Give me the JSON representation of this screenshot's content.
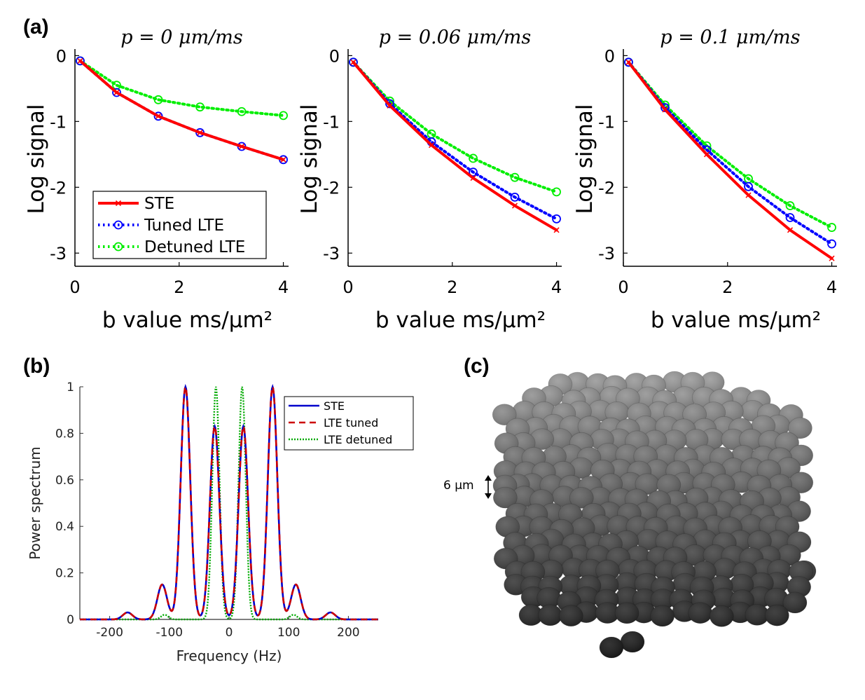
{
  "panels": {
    "a_label": "(a)",
    "b_label": "(b)",
    "c_label": "(c)"
  },
  "panel_c": {
    "scale_label": "6 µm"
  },
  "chart_data": [
    {
      "type": "line",
      "title": "p = 0  μm/ms",
      "xlabel": "b value ms/μm²",
      "ylabel": "Log signal",
      "xlim": [
        0,
        4.1
      ],
      "ylim": [
        -3.2,
        0.1
      ],
      "xticks": [
        "0",
        "2",
        "4"
      ],
      "yticks": [
        "0",
        "-1",
        "-2",
        "-3"
      ],
      "legend": [
        "STE",
        "Tuned LTE",
        "Detuned LTE"
      ],
      "x": [
        0.1,
        0.8,
        1.6,
        2.4,
        3.2,
        4.0
      ],
      "series": [
        {
          "name": "STE",
          "color": "#ff0000",
          "values": [
            -0.08,
            -0.56,
            -0.92,
            -1.17,
            -1.38,
            -1.58
          ]
        },
        {
          "name": "Tuned LTE",
          "color": "#0000ff",
          "values": [
            -0.08,
            -0.56,
            -0.92,
            -1.17,
            -1.38,
            -1.58
          ]
        },
        {
          "name": "Detuned LTE",
          "color": "#00ee00",
          "values": [
            -0.08,
            -0.45,
            -0.67,
            -0.78,
            -0.85,
            -0.91
          ]
        }
      ]
    },
    {
      "type": "line",
      "title": "p = 0.06  μm/ms",
      "xlabel": "b value ms/μm²",
      "ylabel": "Log signal",
      "xlim": [
        0,
        4.1
      ],
      "ylim": [
        -3.2,
        0.1
      ],
      "xticks": [
        "0",
        "2",
        "4"
      ],
      "yticks": [
        "0",
        "-1",
        "-2",
        "-3"
      ],
      "x": [
        0.1,
        0.8,
        1.6,
        2.4,
        3.2,
        4.0
      ],
      "series": [
        {
          "name": "STE",
          "color": "#ff0000",
          "values": [
            -0.1,
            -0.76,
            -1.36,
            -1.86,
            -2.28,
            -2.65
          ]
        },
        {
          "name": "Tuned LTE",
          "color": "#0000ff",
          "values": [
            -0.1,
            -0.73,
            -1.31,
            -1.77,
            -2.15,
            -2.48
          ]
        },
        {
          "name": "Detuned LTE",
          "color": "#00ee00",
          "values": [
            -0.1,
            -0.69,
            -1.19,
            -1.56,
            -1.85,
            -2.07
          ]
        }
      ]
    },
    {
      "type": "line",
      "title": "p = 0.1  μm/ms",
      "xlabel": "b value ms/μm²",
      "ylabel": "Log signal",
      "xlim": [
        0,
        4.1
      ],
      "ylim": [
        -3.2,
        0.1
      ],
      "xticks": [
        "0",
        "2",
        "4"
      ],
      "yticks": [
        "0",
        "-1",
        "-2",
        "-3"
      ],
      "x": [
        0.1,
        0.8,
        1.6,
        2.4,
        3.2,
        4.0
      ],
      "series": [
        {
          "name": "STE",
          "color": "#ff0000",
          "values": [
            -0.1,
            -0.82,
            -1.5,
            -2.12,
            -2.65,
            -3.08
          ]
        },
        {
          "name": "Tuned LTE",
          "color": "#0000ff",
          "values": [
            -0.1,
            -0.79,
            -1.43,
            -1.99,
            -2.46,
            -2.86
          ]
        },
        {
          "name": "Detuned LTE",
          "color": "#00ee00",
          "values": [
            -0.1,
            -0.75,
            -1.37,
            -1.87,
            -2.28,
            -2.61
          ]
        }
      ]
    },
    {
      "type": "line",
      "title": "",
      "xlabel": "Frequency (Hz)",
      "ylabel": "Power spectrum",
      "xlim": [
        -250,
        250
      ],
      "ylim": [
        0,
        1
      ],
      "xticks": [
        "-200",
        "-100",
        "0",
        "100",
        "200"
      ],
      "yticks": [
        "0",
        "0.2",
        "0.4",
        "0.6",
        "0.8",
        "1"
      ],
      "legend": [
        "STE",
        "LTE tuned",
        "LTE detuned"
      ],
      "series": [
        {
          "name": "STE",
          "color": "#0000cc",
          "peaks": [
            [
              -170,
              0.03
            ],
            [
              -112,
              0.15
            ],
            [
              -73,
              1.0
            ],
            [
              -24,
              0.83
            ],
            [
              24,
              0.83
            ],
            [
              73,
              1.0
            ],
            [
              112,
              0.15
            ],
            [
              170,
              0.03
            ]
          ]
        },
        {
          "name": "LTE tuned",
          "color": "#cc0000",
          "peaks": [
            [
              -170,
              0.03
            ],
            [
              -112,
              0.15
            ],
            [
              -73,
              1.0
            ],
            [
              -24,
              0.83
            ],
            [
              24,
              0.83
            ],
            [
              73,
              1.0
            ],
            [
              112,
              0.15
            ],
            [
              170,
              0.03
            ]
          ]
        },
        {
          "name": "LTE detuned",
          "color": "#00aa00",
          "peaks": [
            [
              -108,
              0.02
            ],
            [
              -22,
              1.0
            ],
            [
              22,
              1.0
            ],
            [
              108,
              0.02
            ]
          ]
        }
      ]
    }
  ]
}
